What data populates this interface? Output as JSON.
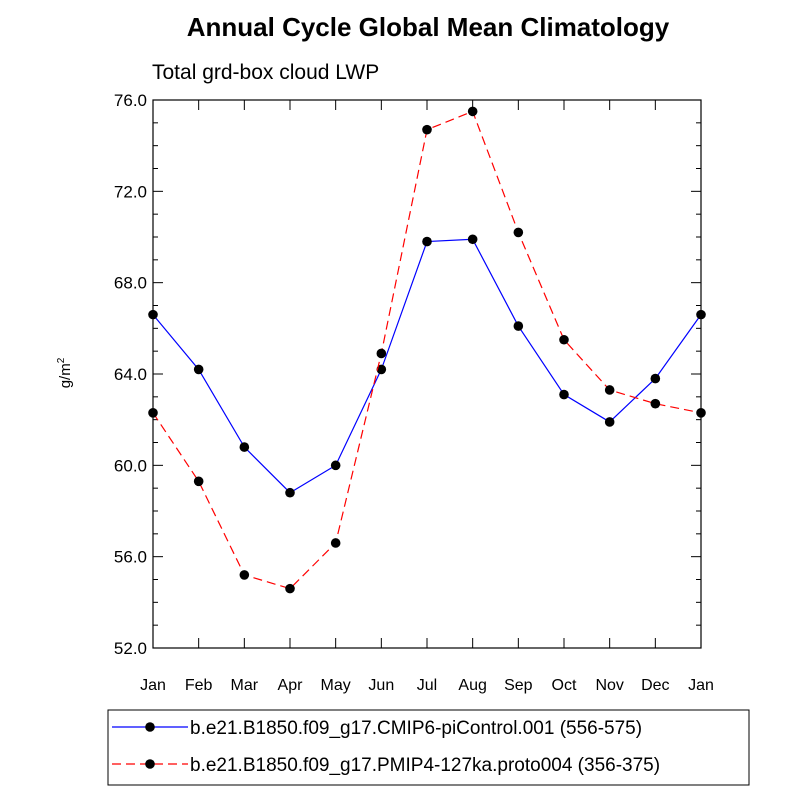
{
  "chart_data": {
    "type": "line",
    "title": "Annual Cycle Global Mean Climatology",
    "subtitle": "Total grd-box cloud LWP",
    "ylabel_base": "g/m",
    "ylabel_sup": "2",
    "xlabel": "",
    "ylim": [
      52,
      76
    ],
    "yticks": [
      "52.0",
      "56.0",
      "60.0",
      "64.0",
      "68.0",
      "72.0",
      "76.0"
    ],
    "categories": [
      "Jan",
      "Feb",
      "Mar",
      "Apr",
      "May",
      "Jun",
      "Jul",
      "Aug",
      "Sep",
      "Oct",
      "Nov",
      "Dec",
      "Jan"
    ],
    "series": [
      {
        "name": "b.e21.B1850.f09_g17.CMIP6-piControl.001 (556-575)",
        "color": "#0000ff",
        "dash": "solid",
        "values": [
          66.6,
          64.2,
          60.8,
          58.8,
          60.0,
          64.2,
          69.8,
          69.9,
          66.1,
          63.1,
          61.9,
          63.8,
          66.6
        ]
      },
      {
        "name": "b.e21.B1850.f09_g17.PMIP4-127ka.proto004 (356-375)",
        "color": "#ff0000",
        "dash": "dashed",
        "values": [
          62.3,
          59.3,
          55.2,
          54.6,
          56.6,
          64.9,
          74.7,
          75.5,
          70.2,
          65.5,
          63.3,
          62.7,
          62.3
        ]
      }
    ],
    "grid": false,
    "legend_position": "bottom"
  }
}
